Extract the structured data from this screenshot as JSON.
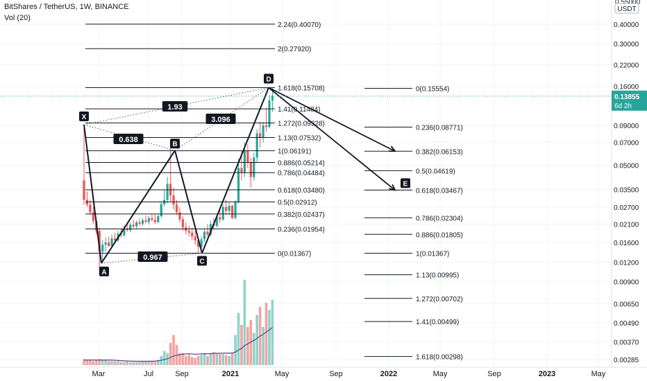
{
  "header": {
    "title": "BitShares / TetherUS, 1W, BINANCE",
    "volume_indicator": "Vol (20)"
  },
  "chart_data": {
    "type": "candlestick",
    "price_scale": {
      "unit": "USDT",
      "scale": "log",
      "top_partial_label": "0.55000",
      "ticks": [
        0.4,
        0.3,
        0.22,
        0.16,
        0.09,
        0.07,
        0.05,
        0.035,
        0.027,
        0.021,
        0.016,
        0.012,
        0.009,
        0.0065,
        0.0049,
        0.0037,
        0.00285
      ],
      "tick_labels": [
        "0.40000",
        "0.30000",
        "0.22000",
        "0.16000",
        "0.09000",
        "0.07000",
        "0.05000",
        "0.03500",
        "0.02700",
        "0.02100",
        "0.01600",
        "0.01200",
        "0.00900",
        "0.00650",
        "0.00490",
        "0.00370",
        "0.00285"
      ]
    },
    "current_price": {
      "label": "0.13855",
      "value": 0.13855,
      "countdown": "6d 2h",
      "color": "#26a69a"
    },
    "time_axis": [
      "Mar",
      "Jul",
      "Sep",
      "2021",
      "May",
      "Sep",
      "2022",
      "May",
      "Sep",
      "2023",
      "May"
    ],
    "time_axis_positions": [
      {
        "label": "Mar",
        "pos": 142
      },
      {
        "label": "Jul",
        "pos": 214
      },
      {
        "label": "Sep",
        "pos": 262
      },
      {
        "label": "2021",
        "pos": 332
      },
      {
        "label": "May",
        "pos": 406
      },
      {
        "label": "Sep",
        "pos": 484
      },
      {
        "label": "2022",
        "pos": 560
      },
      {
        "label": "May",
        "pos": 634
      },
      {
        "label": "Sep",
        "pos": 712
      },
      {
        "label": "2023",
        "pos": 788
      },
      {
        "label": "May",
        "pos": 862
      }
    ],
    "harmonic_pattern": {
      "points": [
        {
          "label": "X",
          "price": 0.091
        },
        {
          "label": "A",
          "price": 0.0118
        },
        {
          "label": "B",
          "price": 0.0622
        },
        {
          "label": "C",
          "price": 0.01367
        },
        {
          "label": "D",
          "price": 0.15708
        }
      ],
      "ratios": [
        {
          "label": "0.638",
          "between": "XA-B"
        },
        {
          "label": "0.967",
          "between": "AB-C"
        },
        {
          "label": "1.93",
          "between": "XA-D"
        },
        {
          "label": "3.096",
          "between": "BC-D"
        }
      ],
      "projection_target": "E"
    },
    "fib_extension": [
      {
        "ratio": "2.24",
        "price": 0.4007,
        "label": "2.24(0.40070)"
      },
      {
        "ratio": "2",
        "price": 0.2792,
        "label": "2(0.27920)"
      },
      {
        "ratio": "1.618",
        "price": 0.15708,
        "label": "1.618(0.15708)"
      },
      {
        "ratio": "1.41",
        "price": 0.11484,
        "label": "1.41(0.11484)"
      },
      {
        "ratio": "1.272",
        "price": 0.09328,
        "label": "1.272(0.09328)"
      },
      {
        "ratio": "1.13",
        "price": 0.07532,
        "label": "1.13(0.07532)"
      },
      {
        "ratio": "1",
        "price": 0.06191,
        "label": "1(0.06191)"
      },
      {
        "ratio": "0.886",
        "price": 0.05214,
        "label": "0.886(0.05214)"
      },
      {
        "ratio": "0.786",
        "price": 0.04484,
        "label": "0.786(0.04484)"
      },
      {
        "ratio": "0.618",
        "price": 0.0348,
        "label": "0.618(0.03480)"
      },
      {
        "ratio": "0.5",
        "price": 0.02912,
        "label": "0.5(0.02912)"
      },
      {
        "ratio": "0.382",
        "price": 0.02437,
        "label": "0.382(0.02437)"
      },
      {
        "ratio": "0.236",
        "price": 0.01954,
        "label": "0.236(0.01954)"
      },
      {
        "ratio": "0",
        "price": 0.01367,
        "label": "0(0.01367)"
      }
    ],
    "fib_retracement": [
      {
        "ratio": "0",
        "price": 0.15554,
        "label": "0(0.15554)"
      },
      {
        "ratio": "0.236",
        "price": 0.08771,
        "label": "0.236(0.08771)"
      },
      {
        "ratio": "0.382",
        "price": 0.06153,
        "label": "0.382(0.06153)"
      },
      {
        "ratio": "0.5",
        "price": 0.04619,
        "label": "0.5(0.04619)"
      },
      {
        "ratio": "0.618",
        "price": 0.03467,
        "label": "0.618(0.03467)"
      },
      {
        "ratio": "0.786",
        "price": 0.02304,
        "label": "0.786(0.02304)"
      },
      {
        "ratio": "0.886",
        "price": 0.01805,
        "label": "0.886(0.01805)"
      },
      {
        "ratio": "1",
        "price": 0.01367,
        "label": "1(0.01367)"
      },
      {
        "ratio": "1.13",
        "price": 0.00995,
        "label": "1.13(0.00995)"
      },
      {
        "ratio": "1.272",
        "price": 0.00702,
        "label": "1.272(0.00702)"
      },
      {
        "ratio": "1.41",
        "price": 0.00499,
        "label": "1.41(0.00499)"
      },
      {
        "ratio": "1.618",
        "price": 0.00298,
        "label": "1.618(0.00298)"
      }
    ],
    "candles": [
      {
        "o": 0.04,
        "h": 0.09,
        "l": 0.028,
        "c": 0.03
      },
      {
        "o": 0.03,
        "h": 0.034,
        "l": 0.027,
        "c": 0.028
      },
      {
        "o": 0.028,
        "h": 0.03,
        "l": 0.024,
        "c": 0.025
      },
      {
        "o": 0.025,
        "h": 0.027,
        "l": 0.021,
        "c": 0.022
      },
      {
        "o": 0.022,
        "h": 0.023,
        "l": 0.018,
        "c": 0.019
      },
      {
        "o": 0.019,
        "h": 0.02,
        "l": 0.01,
        "c": 0.014
      },
      {
        "o": 0.014,
        "h": 0.0165,
        "l": 0.0118,
        "c": 0.0155
      },
      {
        "o": 0.0155,
        "h": 0.0172,
        "l": 0.014,
        "c": 0.016
      },
      {
        "o": 0.016,
        "h": 0.0175,
        "l": 0.015,
        "c": 0.0152
      },
      {
        "o": 0.0152,
        "h": 0.018,
        "l": 0.0148,
        "c": 0.017
      },
      {
        "o": 0.017,
        "h": 0.0185,
        "l": 0.016,
        "c": 0.0165
      },
      {
        "o": 0.0165,
        "h": 0.019,
        "l": 0.0162,
        "c": 0.0182
      },
      {
        "o": 0.0182,
        "h": 0.0198,
        "l": 0.0172,
        "c": 0.0178
      },
      {
        "o": 0.0178,
        "h": 0.0205,
        "l": 0.0174,
        "c": 0.0196
      },
      {
        "o": 0.0196,
        "h": 0.0212,
        "l": 0.0188,
        "c": 0.0192
      },
      {
        "o": 0.0192,
        "h": 0.0215,
        "l": 0.0186,
        "c": 0.0208
      },
      {
        "o": 0.0208,
        "h": 0.0224,
        "l": 0.0198,
        "c": 0.0203
      },
      {
        "o": 0.0203,
        "h": 0.0222,
        "l": 0.0196,
        "c": 0.0216
      },
      {
        "o": 0.0216,
        "h": 0.0228,
        "l": 0.0205,
        "c": 0.0211
      },
      {
        "o": 0.0211,
        "h": 0.023,
        "l": 0.0205,
        "c": 0.0222
      },
      {
        "o": 0.0222,
        "h": 0.0238,
        "l": 0.0212,
        "c": 0.0217
      },
      {
        "o": 0.0217,
        "h": 0.0236,
        "l": 0.0209,
        "c": 0.0229
      },
      {
        "o": 0.0229,
        "h": 0.0245,
        "l": 0.0218,
        "c": 0.0224
      },
      {
        "o": 0.0224,
        "h": 0.0242,
        "l": 0.021,
        "c": 0.0216
      },
      {
        "o": 0.0216,
        "h": 0.0242,
        "l": 0.0212,
        "c": 0.0236
      },
      {
        "o": 0.0236,
        "h": 0.029,
        "l": 0.023,
        "c": 0.0282
      },
      {
        "o": 0.0282,
        "h": 0.035,
        "l": 0.0272,
        "c": 0.03
      },
      {
        "o": 0.03,
        "h": 0.042,
        "l": 0.0285,
        "c": 0.038
      },
      {
        "o": 0.038,
        "h": 0.064,
        "l": 0.029,
        "c": 0.032
      },
      {
        "o": 0.032,
        "h": 0.036,
        "l": 0.026,
        "c": 0.028
      },
      {
        "o": 0.028,
        "h": 0.03,
        "l": 0.024,
        "c": 0.025
      },
      {
        "o": 0.025,
        "h": 0.027,
        "l": 0.0215,
        "c": 0.0225
      },
      {
        "o": 0.0225,
        "h": 0.0235,
        "l": 0.019,
        "c": 0.02
      },
      {
        "o": 0.02,
        "h": 0.0215,
        "l": 0.018,
        "c": 0.019
      },
      {
        "o": 0.019,
        "h": 0.0205,
        "l": 0.0175,
        "c": 0.0185
      },
      {
        "o": 0.0185,
        "h": 0.02,
        "l": 0.0165,
        "c": 0.0175
      },
      {
        "o": 0.0175,
        "h": 0.019,
        "l": 0.0155,
        "c": 0.0165
      },
      {
        "o": 0.0165,
        "h": 0.017,
        "l": 0.0137,
        "c": 0.015
      },
      {
        "o": 0.015,
        "h": 0.0175,
        "l": 0.0145,
        "c": 0.0168
      },
      {
        "o": 0.0168,
        "h": 0.0195,
        "l": 0.016,
        "c": 0.0188
      },
      {
        "o": 0.0188,
        "h": 0.021,
        "l": 0.0175,
        "c": 0.018
      },
      {
        "o": 0.018,
        "h": 0.022,
        "l": 0.0175,
        "c": 0.021
      },
      {
        "o": 0.021,
        "h": 0.023,
        "l": 0.0195,
        "c": 0.0205
      },
      {
        "o": 0.0205,
        "h": 0.024,
        "l": 0.02,
        "c": 0.0232
      },
      {
        "o": 0.0232,
        "h": 0.026,
        "l": 0.0215,
        "c": 0.0225
      },
      {
        "o": 0.0225,
        "h": 0.028,
        "l": 0.022,
        "c": 0.027
      },
      {
        "o": 0.027,
        "h": 0.03,
        "l": 0.024,
        "c": 0.0255
      },
      {
        "o": 0.0255,
        "h": 0.029,
        "l": 0.024,
        "c": 0.0275
      },
      {
        "o": 0.0275,
        "h": 0.028,
        "l": 0.0225,
        "c": 0.023
      },
      {
        "o": 0.023,
        "h": 0.03,
        "l": 0.0225,
        "c": 0.029
      },
      {
        "o": 0.029,
        "h": 0.055,
        "l": 0.0285,
        "c": 0.048
      },
      {
        "o": 0.048,
        "h": 0.062,
        "l": 0.04,
        "c": 0.045
      },
      {
        "o": 0.045,
        "h": 0.07,
        "l": 0.042,
        "c": 0.062
      },
      {
        "o": 0.062,
        "h": 0.068,
        "l": 0.048,
        "c": 0.052
      },
      {
        "o": 0.052,
        "h": 0.056,
        "l": 0.036,
        "c": 0.042
      },
      {
        "o": 0.042,
        "h": 0.06,
        "l": 0.04,
        "c": 0.056
      },
      {
        "o": 0.056,
        "h": 0.085,
        "l": 0.052,
        "c": 0.08
      },
      {
        "o": 0.08,
        "h": 0.095,
        "l": 0.065,
        "c": 0.075
      },
      {
        "o": 0.075,
        "h": 0.095,
        "l": 0.07,
        "c": 0.09
      },
      {
        "o": 0.09,
        "h": 0.115,
        "l": 0.082,
        "c": 0.088
      },
      {
        "o": 0.088,
        "h": 0.14,
        "l": 0.086,
        "c": 0.13
      },
      {
        "o": 0.13,
        "h": 0.1571,
        "l": 0.11,
        "c": 0.13855
      }
    ],
    "volumes": [
      6,
      5,
      5,
      4,
      5,
      6,
      5,
      5,
      4,
      4,
      4,
      4,
      3,
      3,
      4,
      3,
      3,
      3,
      3,
      4,
      4,
      4,
      4,
      4,
      5,
      9,
      14,
      12,
      22,
      30,
      20,
      12,
      12,
      9,
      10,
      8,
      7,
      9,
      10,
      11,
      9,
      12,
      13,
      12,
      11,
      11,
      10,
      9,
      12,
      30,
      52,
      40,
      85,
      38,
      45,
      32,
      50,
      58,
      38,
      62,
      55,
      65
    ],
    "volume_ma": [
      5,
      5,
      5,
      5,
      5,
      5,
      5,
      5,
      5,
      5,
      4.8,
      4.6,
      4.4,
      4.2,
      4.1,
      4.0,
      3.9,
      3.8,
      3.8,
      3.8,
      3.8,
      3.8,
      3.9,
      4.0,
      4.3,
      4.8,
      5.5,
      6.3,
      7.5,
      9.0,
      9.8,
      10.3,
      10.8,
      11.0,
      11.2,
      11.0,
      10.8,
      10.9,
      11.1,
      11.3,
      11.2,
      11.4,
      11.6,
      11.7,
      11.8,
      11.9,
      11.9,
      11.8,
      12.0,
      13.0,
      15.0,
      16.5,
      19.5,
      21.0,
      23.0,
      24.5,
      26.5,
      29.0,
      30.5,
      33.0,
      35.0,
      37.5
    ],
    "colors": {
      "up": "#26a69a",
      "down": "#ef5350",
      "vol_up": "#8fd3cb",
      "vol_down": "#f3a3a1",
      "vol_ma": "#5b3d8f"
    }
  }
}
